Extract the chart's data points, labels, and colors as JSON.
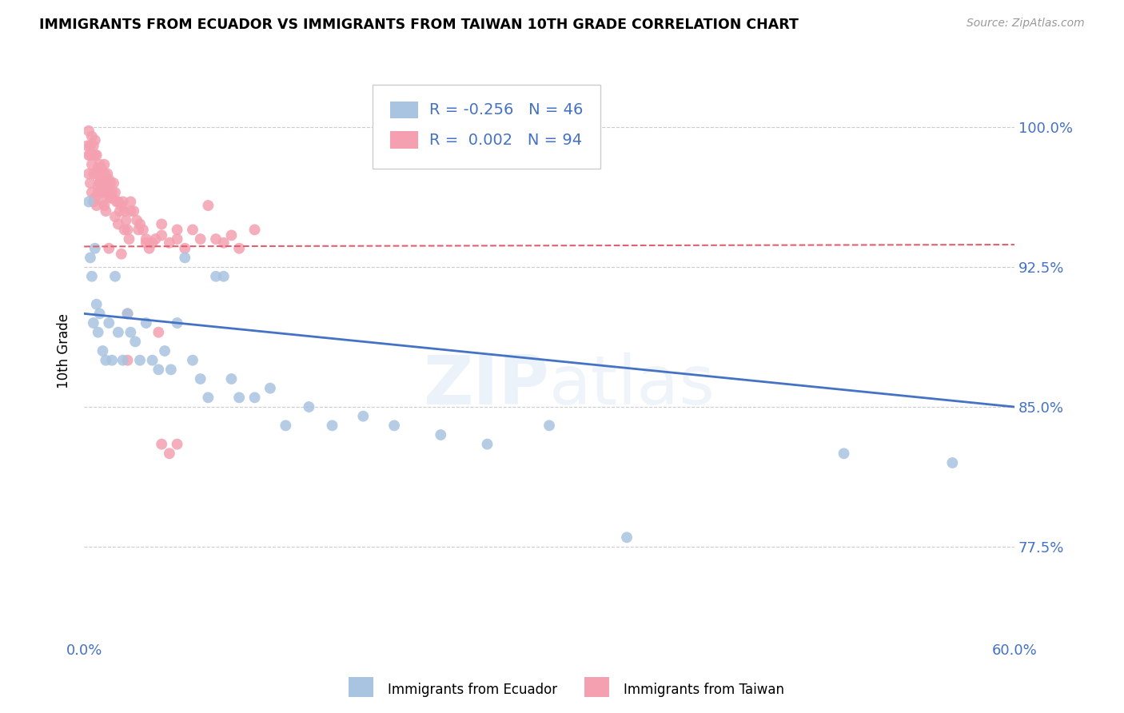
{
  "title": "IMMIGRANTS FROM ECUADOR VS IMMIGRANTS FROM TAIWAN 10TH GRADE CORRELATION CHART",
  "source": "Source: ZipAtlas.com",
  "ylabel": "10th Grade",
  "ytick_labels": [
    "100.0%",
    "92.5%",
    "85.0%",
    "77.5%"
  ],
  "ytick_values": [
    1.0,
    0.925,
    0.85,
    0.775
  ],
  "legend_ecuador": "Immigrants from Ecuador",
  "legend_taiwan": "Immigrants from Taiwan",
  "R_ecuador": -0.256,
  "N_ecuador": 46,
  "R_taiwan": 0.002,
  "N_taiwan": 94,
  "color_ecuador": "#a8c4e0",
  "color_taiwan": "#f4a0b0",
  "color_line_ecuador": "#4472C4",
  "color_line_taiwan": "#e06070",
  "color_legend_text": "#4472C4",
  "xmin": 0.0,
  "xmax": 0.6,
  "ymin": 0.725,
  "ymax": 1.035,
  "ecuador_x": [
    0.003,
    0.004,
    0.005,
    0.006,
    0.007,
    0.008,
    0.009,
    0.01,
    0.012,
    0.014,
    0.016,
    0.018,
    0.02,
    0.022,
    0.025,
    0.028,
    0.03,
    0.033,
    0.036,
    0.04,
    0.044,
    0.048,
    0.052,
    0.056,
    0.06,
    0.065,
    0.07,
    0.075,
    0.08,
    0.085,
    0.09,
    0.095,
    0.1,
    0.11,
    0.12,
    0.13,
    0.145,
    0.16,
    0.18,
    0.2,
    0.23,
    0.26,
    0.3,
    0.35,
    0.49,
    0.56
  ],
  "ecuador_y": [
    0.96,
    0.93,
    0.92,
    0.895,
    0.935,
    0.905,
    0.89,
    0.9,
    0.88,
    0.875,
    0.895,
    0.875,
    0.92,
    0.89,
    0.875,
    0.9,
    0.89,
    0.885,
    0.875,
    0.895,
    0.875,
    0.87,
    0.88,
    0.87,
    0.895,
    0.93,
    0.875,
    0.865,
    0.855,
    0.92,
    0.92,
    0.865,
    0.855,
    0.855,
    0.86,
    0.84,
    0.85,
    0.84,
    0.845,
    0.84,
    0.835,
    0.83,
    0.84,
    0.78,
    0.825,
    0.82
  ],
  "taiwan_x": [
    0.002,
    0.003,
    0.003,
    0.004,
    0.004,
    0.005,
    0.005,
    0.006,
    0.006,
    0.007,
    0.007,
    0.008,
    0.008,
    0.009,
    0.009,
    0.01,
    0.01,
    0.011,
    0.011,
    0.012,
    0.012,
    0.013,
    0.013,
    0.014,
    0.014,
    0.015,
    0.015,
    0.016,
    0.016,
    0.017,
    0.017,
    0.018,
    0.019,
    0.02,
    0.021,
    0.022,
    0.023,
    0.024,
    0.025,
    0.026,
    0.027,
    0.028,
    0.029,
    0.03,
    0.032,
    0.034,
    0.036,
    0.038,
    0.04,
    0.042,
    0.044,
    0.046,
    0.05,
    0.055,
    0.06,
    0.065,
    0.07,
    0.075,
    0.08,
    0.085,
    0.09,
    0.095,
    0.1,
    0.11,
    0.003,
    0.004,
    0.005,
    0.006,
    0.007,
    0.008,
    0.009,
    0.01,
    0.011,
    0.012,
    0.013,
    0.014,
    0.015,
    0.016,
    0.018,
    0.02,
    0.022,
    0.024,
    0.026,
    0.028,
    0.03,
    0.035,
    0.04,
    0.05,
    0.06,
    0.06,
    0.048,
    0.05,
    0.028,
    0.055
  ],
  "taiwan_y": [
    0.99,
    0.985,
    0.998,
    0.99,
    0.985,
    0.98,
    0.995,
    0.975,
    0.99,
    0.985,
    0.993,
    0.975,
    0.985,
    0.965,
    0.978,
    0.97,
    0.98,
    0.978,
    0.972,
    0.97,
    0.965,
    0.98,
    0.975,
    0.97,
    0.965,
    0.975,
    0.968,
    0.972,
    0.965,
    0.97,
    0.962,
    0.965,
    0.97,
    0.965,
    0.96,
    0.96,
    0.955,
    0.958,
    0.96,
    0.955,
    0.95,
    0.945,
    0.94,
    0.955,
    0.955,
    0.95,
    0.948,
    0.945,
    0.94,
    0.935,
    0.938,
    0.94,
    0.942,
    0.938,
    0.94,
    0.935,
    0.945,
    0.94,
    0.958,
    0.94,
    0.938,
    0.942,
    0.935,
    0.945,
    0.975,
    0.97,
    0.965,
    0.96,
    0.962,
    0.958,
    0.968,
    0.97,
    0.965,
    0.96,
    0.958,
    0.955,
    0.968,
    0.935,
    0.962,
    0.952,
    0.948,
    0.932,
    0.945,
    0.9,
    0.96,
    0.945,
    0.938,
    0.948,
    0.945,
    0.83,
    0.89,
    0.83,
    0.875,
    0.825
  ]
}
